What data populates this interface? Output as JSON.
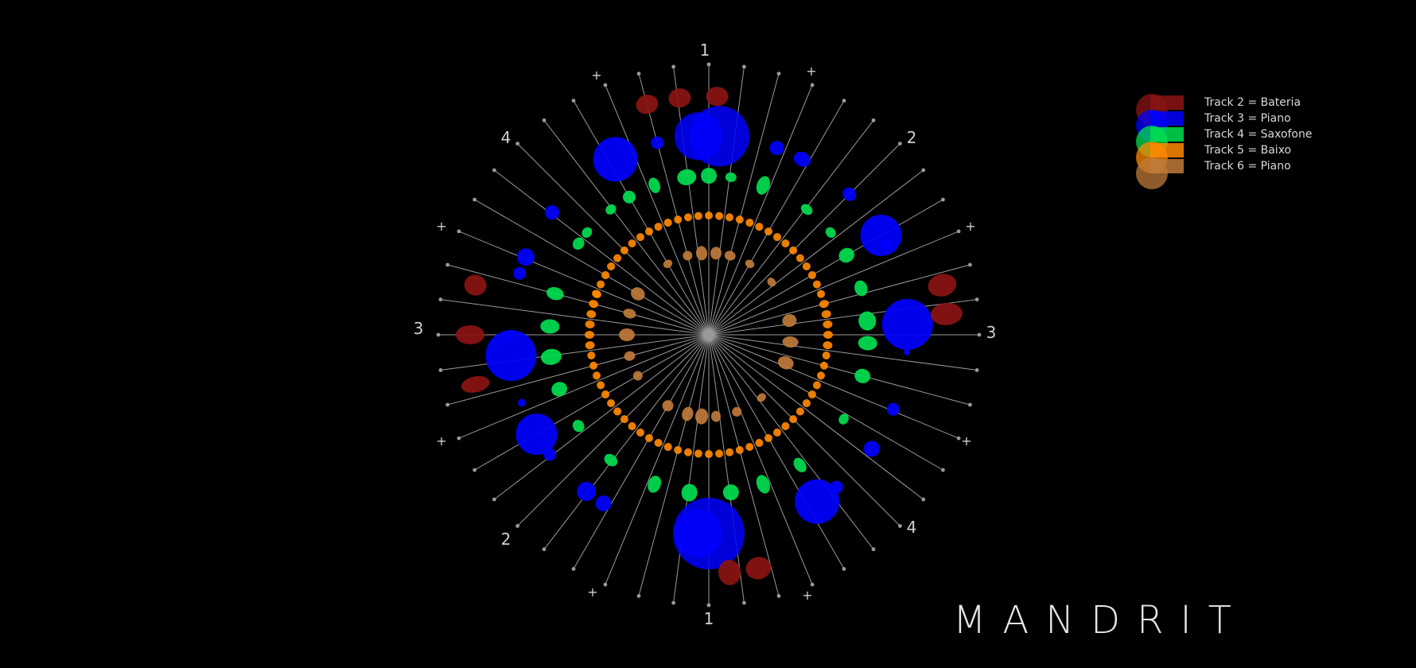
{
  "legend": {
    "items": [
      {
        "label": "Track 2 = Bateria",
        "color": "#8b1414"
      },
      {
        "label": "Track 3 = Piano",
        "color": "#0000ff"
      },
      {
        "label": "Track 4 = Saxofone",
        "color": "#00e050"
      },
      {
        "label": "Track 5 = Baixo",
        "color": "#ff8800"
      },
      {
        "label": "Track 6 = Piano",
        "color": "#c07a3a"
      }
    ]
  },
  "radial": {
    "spoke_count": 48,
    "markers": [
      "1",
      "2",
      "3",
      "4",
      "2",
      "3",
      "4",
      "1",
      "+",
      "+",
      "+",
      "+",
      "+",
      "+",
      "+",
      "+"
    ]
  },
  "brand": {
    "title": "MANDRIT"
  }
}
